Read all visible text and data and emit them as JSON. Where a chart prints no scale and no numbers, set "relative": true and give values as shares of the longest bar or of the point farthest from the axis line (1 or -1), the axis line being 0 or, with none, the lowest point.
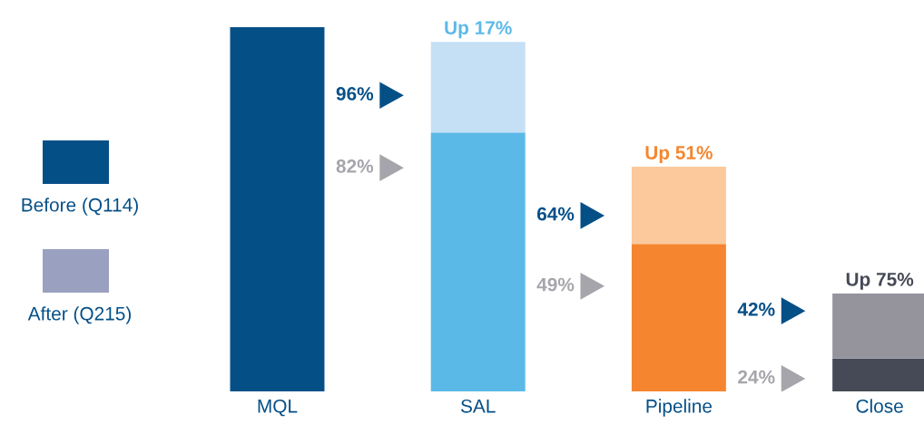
{
  "chart_data": {
    "type": "bar",
    "stacked": true,
    "relative": true,
    "categories": [
      "MQL",
      "SAL",
      "Pipeline",
      "Close"
    ],
    "series": [
      {
        "color": "#054f87",
        "colors": [
          "#054f87",
          "#5bb9e8",
          "#f5862f",
          "#464a56"
        ],
        "values": [
          1,
          0.711,
          0.405,
          0.09
        ]
      },
      {
        "color": "#9aa0c0",
        "colors": [
          "#c5e0f5",
          "#c5e0f5",
          "#fbc99c",
          "#95939c"
        ],
        "values": [
          null,
          0.249,
          0.212,
          0.179
        ]
      }
    ],
    "totals": [
      null,
      "Up 17%",
      "Up 51%",
      "Up 75%"
    ],
    "annotations": [
      "96%",
      "82%",
      "64%",
      "49%",
      "42%",
      "24%",
      "Before (Q114)",
      "After (Q215)"
    ]
  }
}
